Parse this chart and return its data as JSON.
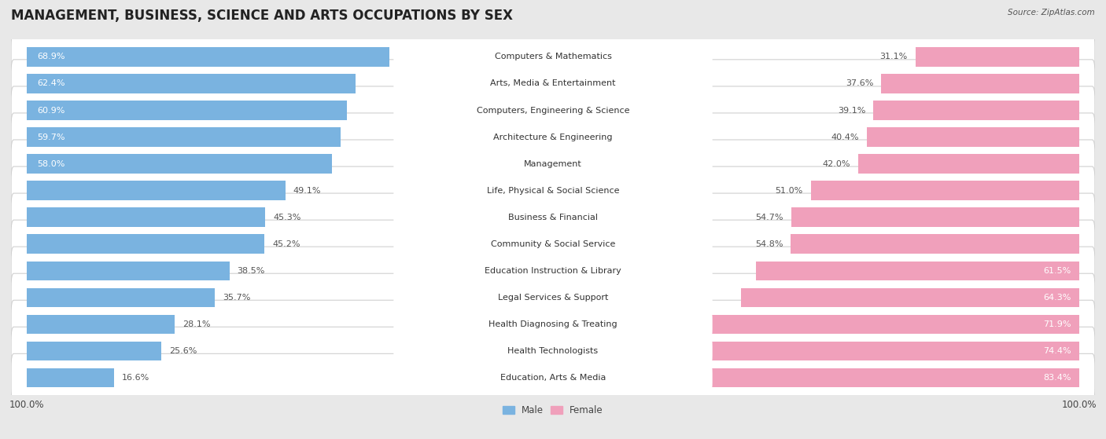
{
  "title": "MANAGEMENT, BUSINESS, SCIENCE AND ARTS OCCUPATIONS BY SEX",
  "source": "Source: ZipAtlas.com",
  "categories": [
    "Computers & Mathematics",
    "Arts, Media & Entertainment",
    "Computers, Engineering & Science",
    "Architecture & Engineering",
    "Management",
    "Life, Physical & Social Science",
    "Business & Financial",
    "Community & Social Service",
    "Education Instruction & Library",
    "Legal Services & Support",
    "Health Diagnosing & Treating",
    "Health Technologists",
    "Education, Arts & Media"
  ],
  "male_pct": [
    68.9,
    62.4,
    60.9,
    59.7,
    58.0,
    49.1,
    45.3,
    45.2,
    38.5,
    35.7,
    28.1,
    25.6,
    16.6
  ],
  "female_pct": [
    31.1,
    37.6,
    39.1,
    40.4,
    42.0,
    51.0,
    54.7,
    54.8,
    61.5,
    64.3,
    71.9,
    74.4,
    83.4
  ],
  "male_color": "#7ab3e0",
  "female_color": "#f0a0bb",
  "bg_color": "#e8e8e8",
  "row_bg_color": "#ffffff",
  "row_border_color": "#d0d0d0",
  "title_fontsize": 12,
  "label_fontsize": 8,
  "tick_fontsize": 8.5,
  "cat_label_color": "#333333",
  "pct_label_inside_color": "#ffffff",
  "pct_label_outside_color": "#555555",
  "legend_label_color": "#444444"
}
